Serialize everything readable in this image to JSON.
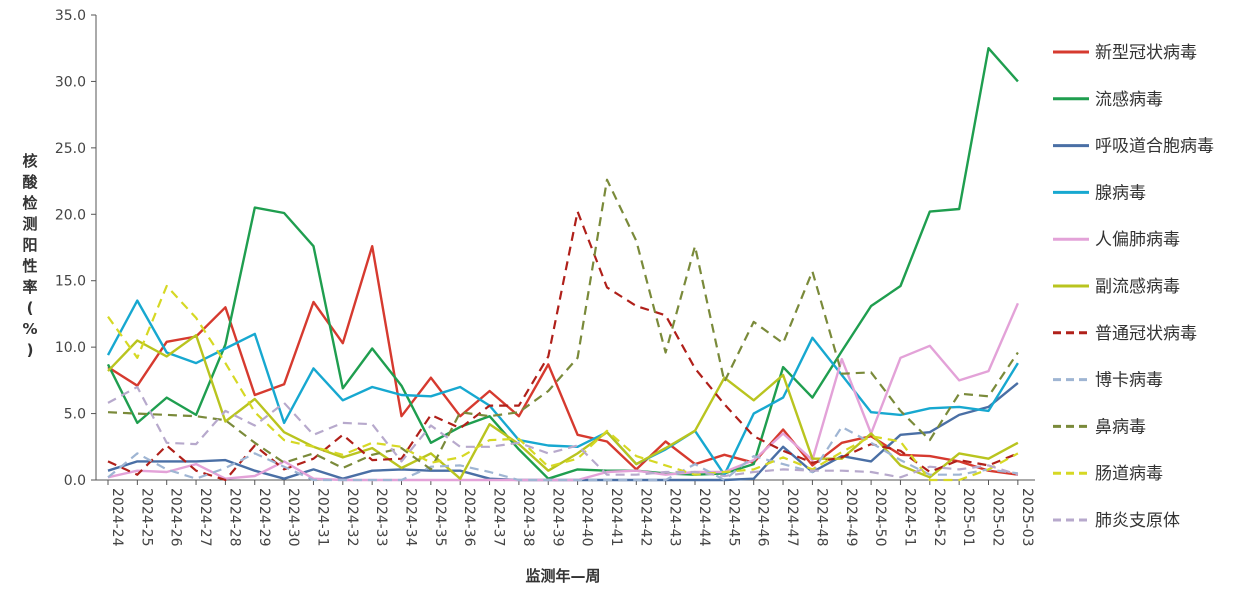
{
  "chart_data": {
    "type": "line",
    "xlabel": "监测年—周",
    "ylabel": "核酸检测阳性率(%)",
    "ylim": [
      0,
      35
    ],
    "ytick_labels": [
      "0.0",
      "5.0",
      "10.0",
      "15.0",
      "20.0",
      "25.0",
      "30.0",
      "35.0"
    ],
    "categories": [
      "2024-24",
      "2024-25",
      "2024-26",
      "2024-27",
      "2024-28",
      "2024-29",
      "2024-30",
      "2024-31",
      "2024-32",
      "2024-33",
      "2024-34",
      "2024-35",
      "2024-36",
      "2024-37",
      "2024-38",
      "2024-39",
      "2024-40",
      "2024-41",
      "2024-42",
      "2024-43",
      "2024-44",
      "2024-45",
      "2024-46",
      "2024-47",
      "2024-48",
      "2024-49",
      "2024-50",
      "2024-51",
      "2024-52",
      "2025-01",
      "2025-02",
      "2025-03"
    ],
    "legend_position": "right",
    "grid": false,
    "series": [
      {
        "name": "新型冠状病毒",
        "color": "#d63a2f",
        "dash": false,
        "values": [
          8.5,
          7.1,
          10.4,
          10.8,
          13.0,
          6.4,
          7.2,
          13.4,
          10.3,
          17.6,
          4.8,
          7.7,
          4.8,
          6.7,
          4.8,
          8.7,
          3.4,
          2.9,
          0.8,
          2.9,
          1.2,
          1.9,
          1.3,
          3.8,
          1.1,
          2.8,
          3.3,
          1.9,
          1.8,
          1.4,
          0.7,
          0.4
        ]
      },
      {
        "name": "流感病毒",
        "color": "#1f9e4f",
        "dash": false,
        "values": [
          8.7,
          4.3,
          6.2,
          4.9,
          10.2,
          20.5,
          20.1,
          17.6,
          6.9,
          9.9,
          7.1,
          2.8,
          4.0,
          4.8,
          2.3,
          0.1,
          0.8,
          0.7,
          0.7,
          0.5,
          0.4,
          0.5,
          1.2,
          8.5,
          6.2,
          9.7,
          13.1,
          14.6,
          20.2,
          20.4,
          32.5,
          30.0
        ]
      },
      {
        "name": "呼吸道合胞病毒",
        "color": "#4a6fa5",
        "dash": false,
        "values": [
          0.7,
          1.4,
          1.4,
          1.4,
          1.5,
          0.7,
          0.1,
          0.8,
          0.1,
          0.7,
          0.8,
          0.7,
          0.7,
          0.1,
          0.0,
          0.0,
          0.0,
          0.0,
          0.0,
          0.0,
          0.0,
          0.0,
          0.1,
          2.5,
          0.6,
          1.8,
          1.4,
          3.4,
          3.6,
          4.9,
          5.5,
          7.3
        ]
      },
      {
        "name": "腺病毒",
        "color": "#17a8d0",
        "dash": false,
        "values": [
          9.4,
          13.5,
          9.6,
          8.8,
          9.9,
          11.0,
          4.3,
          8.4,
          6.0,
          7.0,
          6.4,
          6.3,
          7.0,
          5.6,
          3.0,
          2.6,
          2.5,
          3.6,
          1.2,
          2.3,
          3.7,
          0.4,
          5.0,
          6.2,
          10.7,
          7.9,
          5.1,
          4.9,
          5.4,
          5.5,
          5.2,
          8.8
        ]
      },
      {
        "name": "人偏肺病毒",
        "color": "#e3a2d8",
        "dash": false,
        "values": [
          0.2,
          0.7,
          0.6,
          1.2,
          0.1,
          0.3,
          1.4,
          0.1,
          0.0,
          0.0,
          0.0,
          0.0,
          0.0,
          0.0,
          0.0,
          0.0,
          0.0,
          0.6,
          0.7,
          0.4,
          0.6,
          0.6,
          1.5,
          3.5,
          1.5,
          9.1,
          3.5,
          9.2,
          10.1,
          7.5,
          8.2,
          13.3
        ]
      },
      {
        "name": "副流感病毒",
        "color": "#b9c41f",
        "dash": false,
        "values": [
          8.2,
          10.5,
          9.3,
          10.9,
          4.4,
          6.1,
          3.6,
          2.5,
          1.7,
          2.4,
          0.9,
          2.0,
          0.1,
          4.2,
          2.7,
          0.7,
          2.0,
          3.6,
          1.2,
          2.4,
          3.7,
          7.7,
          6.0,
          7.9,
          1.6,
          1.6,
          3.5,
          1.1,
          0.2,
          2.0,
          1.6,
          2.8
        ]
      },
      {
        "name": "普通冠状病毒",
        "color": "#b0201a",
        "dash": true,
        "values": [
          1.4,
          0.4,
          2.6,
          0.7,
          0.0,
          2.6,
          0.8,
          1.6,
          3.4,
          1.5,
          1.6,
          4.9,
          3.9,
          5.6,
          5.6,
          9.3,
          20.2,
          14.5,
          13.1,
          12.4,
          8.4,
          5.7,
          3.3,
          2.2,
          1.3,
          1.7,
          2.7,
          2.2,
          0.6,
          1.5,
          1.1,
          2.0
        ]
      },
      {
        "name": "博卡病毒",
        "color": "#9fb5d3",
        "dash": true,
        "values": [
          0.2,
          2.0,
          0.8,
          0.1,
          0.9,
          2.0,
          1.0,
          0.0,
          0.0,
          0.0,
          0.0,
          1.0,
          1.1,
          0.6,
          0.0,
          0.0,
          0.0,
          0.0,
          0.0,
          0.0,
          1.2,
          0.0,
          1.8,
          1.2,
          0.6,
          4.0,
          2.8,
          1.5,
          0.4,
          0.4,
          0.8,
          0.5
        ]
      },
      {
        "name": "鼻病毒",
        "color": "#7a8a3a",
        "dash": true,
        "values": [
          5.1,
          5.0,
          4.9,
          4.8,
          4.5,
          2.8,
          1.3,
          2.0,
          0.9,
          1.9,
          2.4,
          0.8,
          5.1,
          4.8,
          5.1,
          6.7,
          9.2,
          22.6,
          18.0,
          9.6,
          17.6,
          7.4,
          11.9,
          10.3,
          15.7,
          8.0,
          8.1,
          5.2,
          3.0,
          6.5,
          6.3,
          9.6
        ]
      },
      {
        "name": "肠道病毒",
        "color": "#d6d824",
        "dash": true,
        "values": [
          12.3,
          9.2,
          14.6,
          12.2,
          8.8,
          5.1,
          3.0,
          2.5,
          1.9,
          2.8,
          2.5,
          1.3,
          1.7,
          3.0,
          3.1,
          1.0,
          1.6,
          3.7,
          1.8,
          1.1,
          0.4,
          0.6,
          0.8,
          1.7,
          0.8,
          2.1,
          3.3,
          2.9,
          0.0,
          0.0,
          0.8,
          2.0
        ]
      },
      {
        "name": "肺炎支原体",
        "color": "#b7a9cc",
        "dash": true,
        "values": [
          5.8,
          7.0,
          2.8,
          2.7,
          5.2,
          4.1,
          5.8,
          3.4,
          4.3,
          4.2,
          1.4,
          4.1,
          2.5,
          2.5,
          2.8,
          2.0,
          2.6,
          0.4,
          0.4,
          0.6,
          0.6,
          0.3,
          0.6,
          0.8,
          0.7,
          0.7,
          0.6,
          0.2,
          1.0,
          0.8,
          1.1,
          0.4
        ]
      }
    ]
  }
}
